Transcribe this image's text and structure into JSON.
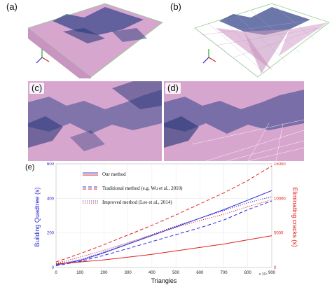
{
  "panels": {
    "a": "(a)",
    "b": "(b)",
    "c": "(c)",
    "d": "(d)",
    "e": "(e)"
  },
  "colors": {
    "terrain_pink": "#d7a6cf",
    "mountain_blue": "#2d3b7a",
    "our_method": "#2b2bd6",
    "traditional": "#e02020",
    "improved": "#e02020"
  },
  "chart_data": {
    "type": "line",
    "xlabel": "Triangles",
    "ylabel_left": "Building Quadtree (s)",
    "ylabel_right": "Eliminating cracks (s)",
    "x_multiplier": "x 10⁴",
    "xlim": [
      0,
      900
    ],
    "ylim_left": [
      0,
      600
    ],
    "ylim_right": [
      0,
      15000
    ],
    "xticks": [
      0,
      100,
      200,
      300,
      400,
      500,
      600,
      700,
      800,
      900
    ],
    "yticks_left": [
      0,
      200,
      400,
      600
    ],
    "yticks_right": [
      0,
      5000,
      10000,
      15000
    ],
    "legend": [
      {
        "label": "Our method",
        "style": "solid"
      },
      {
        "label": "Traditional method (e.g. Wu et al., 2010)",
        "style": "dashed"
      },
      {
        "label": "Improved method (Lee et al., 2014)",
        "style": "dotted"
      }
    ],
    "x": [
      0,
      100,
      200,
      300,
      400,
      500,
      600,
      700,
      800,
      900
    ],
    "series": [
      {
        "name": "Our method",
        "axis": "left",
        "color": "blue",
        "style": "solid",
        "values": [
          15,
          40,
          85,
          135,
          185,
          235,
          285,
          335,
          390,
          445
        ]
      },
      {
        "name": "Traditional method (e.g. Wu et al., 2010)",
        "axis": "left",
        "color": "blue",
        "style": "dashed",
        "values": [
          10,
          35,
          70,
          110,
          150,
          190,
          230,
          275,
          335,
          385
        ]
      },
      {
        "name": "Improved method (Lee et al., 2014)",
        "axis": "left",
        "color": "blue",
        "style": "dotted",
        "values": [
          20,
          45,
          90,
          140,
          190,
          240,
          285,
          330,
          375,
          410
        ]
      },
      {
        "name": "Our method",
        "axis": "right",
        "color": "red",
        "style": "solid",
        "values": [
          500,
          800,
          1100,
          1500,
          1900,
          2400,
          2900,
          3400,
          4000,
          4600
        ]
      },
      {
        "name": "Traditional method (e.g. Wu et al., 2010)",
        "axis": "right",
        "color": "red",
        "style": "dashed",
        "values": [
          800,
          2000,
          3300,
          4700,
          6100,
          7600,
          9200,
          10800,
          12600,
          14700
        ]
      },
      {
        "name": "Improved method (Lee et al., 2014)",
        "axis": "right",
        "color": "red",
        "style": "dotted",
        "values": [
          600,
          1500,
          2500,
          3600,
          4700,
          5800,
          6800,
          7700,
          8800,
          9800
        ]
      }
    ]
  }
}
